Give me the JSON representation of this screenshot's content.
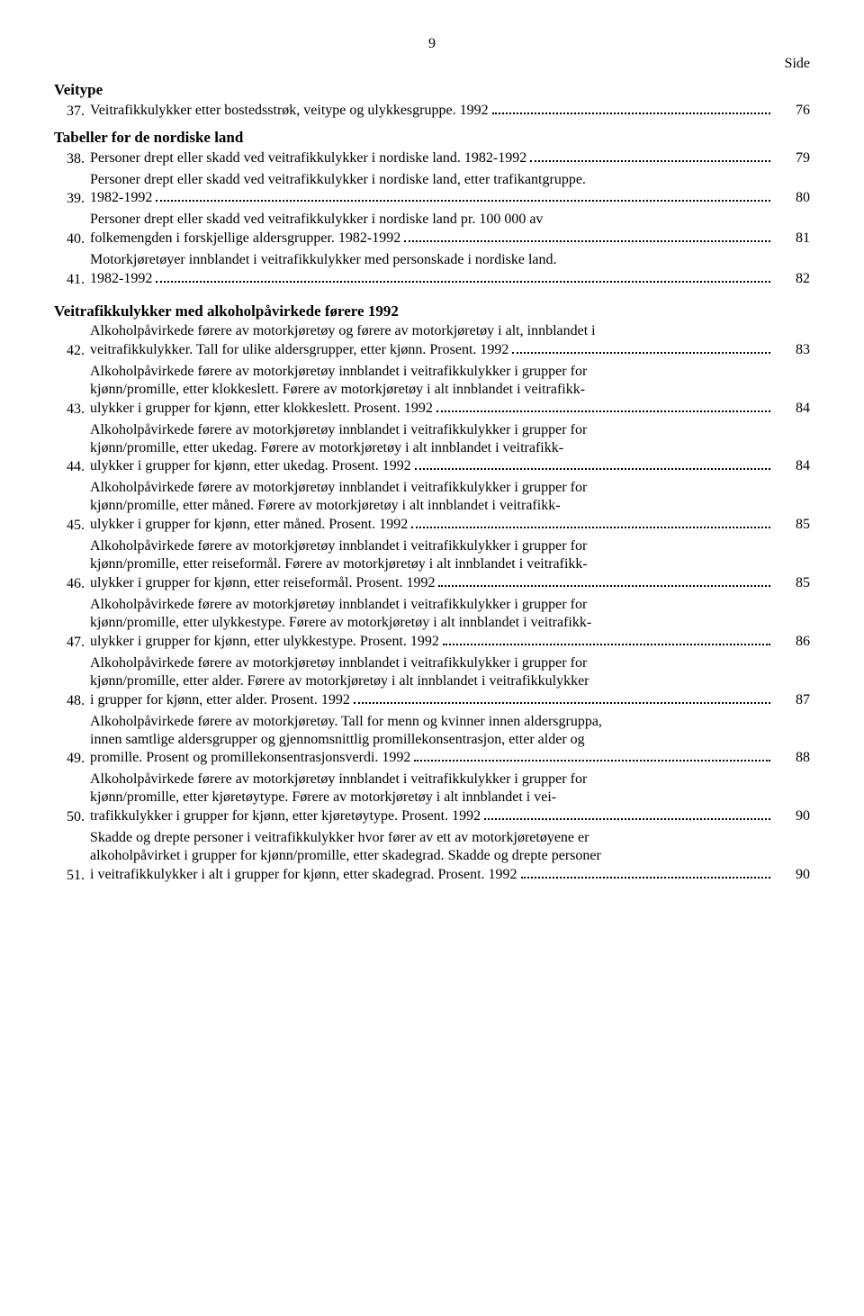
{
  "page_number": "9",
  "side_label": "Side",
  "sections": {
    "veitype": {
      "heading": "Veitype",
      "items": [
        {
          "num": "37.",
          "lines": [],
          "last": "Veitrafikkulykker etter bostedsstrøk, veitype og ulykkesgruppe. 1992",
          "page": "76"
        }
      ]
    },
    "nordiske": {
      "heading": "Tabeller for de nordiske land",
      "items": [
        {
          "num": "38.",
          "lines": [],
          "last": "Personer drept eller skadd ved veitrafikkulykker i nordiske land. 1982-1992",
          "page": "79"
        },
        {
          "num": "39.",
          "lines": [
            "Personer drept eller skadd ved veitrafikkulykker i nordiske land, etter trafikantgruppe."
          ],
          "last": "1982-1992",
          "page": "80"
        },
        {
          "num": "40.",
          "lines": [
            "Personer drept eller skadd ved veitrafikkulykker i nordiske land pr. 100 000 av"
          ],
          "last": "folkemengden i forskjellige aldersgrupper. 1982-1992",
          "page": "81"
        },
        {
          "num": "41.",
          "lines": [
            "Motorkjøretøyer innblandet i veitrafikkulykker med personskade i nordiske land."
          ],
          "last": "1982-1992",
          "page": "82"
        }
      ]
    },
    "alkohol": {
      "heading": "Veitrafikkulykker med alkoholpåvirkede førere 1992",
      "items": [
        {
          "num": "42.",
          "lines": [
            "Alkoholpåvirkede førere av motorkjøretøy og førere av motorkjøretøy i alt, innblandet i"
          ],
          "last": "veitrafikkulykker. Tall for ulike aldersgrupper, etter kjønn. Prosent. 1992",
          "page": "83"
        },
        {
          "num": "43.",
          "lines": [
            "Alkoholpåvirkede førere av motorkjøretøy innblandet i veitrafikkulykker i grupper for",
            "kjønn/promille, etter klokkeslett. Førere av motorkjøretøy i alt innblandet i veitrafikk-"
          ],
          "last": "ulykker i grupper for kjønn, etter klokkeslett. Prosent. 1992",
          "page": "84"
        },
        {
          "num": "44.",
          "lines": [
            "Alkoholpåvirkede førere av motorkjøretøy innblandet i veitrafikkulykker i grupper for",
            "kjønn/promille, etter ukedag. Førere av motorkjøretøy i alt innblandet i veitrafikk-"
          ],
          "last": "ulykker i grupper for kjønn, etter ukedag. Prosent. 1992",
          "page": "84"
        },
        {
          "num": "45.",
          "lines": [
            "Alkoholpåvirkede førere av motorkjøretøy innblandet i veitrafikkulykker i grupper for",
            "kjønn/promille, etter måned. Førere av motorkjøretøy i alt innblandet i veitrafikk-"
          ],
          "last": "ulykker i grupper for kjønn, etter måned. Prosent. 1992",
          "page": "85"
        },
        {
          "num": "46.",
          "lines": [
            "Alkoholpåvirkede førere av motorkjøretøy innblandet i veitrafikkulykker i grupper for",
            "kjønn/promille, etter reiseformål. Førere av motorkjøretøy i alt innblandet i veitrafikk-"
          ],
          "last": "ulykker i grupper for kjønn, etter reiseformål. Prosent. 1992",
          "page": "85"
        },
        {
          "num": "47.",
          "lines": [
            "Alkoholpåvirkede førere av motorkjøretøy innblandet i veitrafikkulykker i grupper for",
            "kjønn/promille, etter ulykkestype. Førere av motorkjøretøy i alt innblandet i veitrafikk-"
          ],
          "last": "ulykker i grupper for kjønn, etter ulykkestype. Prosent. 1992",
          "page": "86"
        },
        {
          "num": "48.",
          "lines": [
            "Alkoholpåvirkede førere av motorkjøretøy innblandet i veitrafikkulykker i grupper for",
            "kjønn/promille, etter alder. Førere av motorkjøretøy i alt innblandet i veitrafikkulykker"
          ],
          "last": "i grupper for kjønn, etter alder. Prosent. 1992",
          "page": "87"
        },
        {
          "num": "49.",
          "lines": [
            "Alkoholpåvirkede førere av motorkjøretøy. Tall for menn og kvinner innen aldersgruppa,",
            "innen samtlige aldersgrupper og gjennomsnittlig promillekonsentrasjon, etter alder og"
          ],
          "last": "promille. Prosent og promillekonsentrasjonsverdi. 1992",
          "page": "88"
        },
        {
          "num": "50.",
          "lines": [
            "Alkoholpåvirkede førere av motorkjøretøy innblandet i veitrafikkulykker i grupper for",
            "kjønn/promille, etter kjøretøytype. Førere av motorkjøretøy i alt innblandet i vei-"
          ],
          "last": "trafikkulykker i grupper for kjønn, etter kjøretøytype. Prosent. 1992",
          "page": "90"
        },
        {
          "num": "51.",
          "lines": [
            "Skadde og drepte personer i veitrafikkulykker hvor fører av ett av motorkjøretøyene er",
            "alkoholpåvirket i grupper for kjønn/promille, etter skadegrad. Skadde og drepte personer"
          ],
          "last": "i veitrafikkulykker i alt i grupper for kjønn, etter skadegrad. Prosent. 1992",
          "page": "90"
        }
      ]
    }
  }
}
